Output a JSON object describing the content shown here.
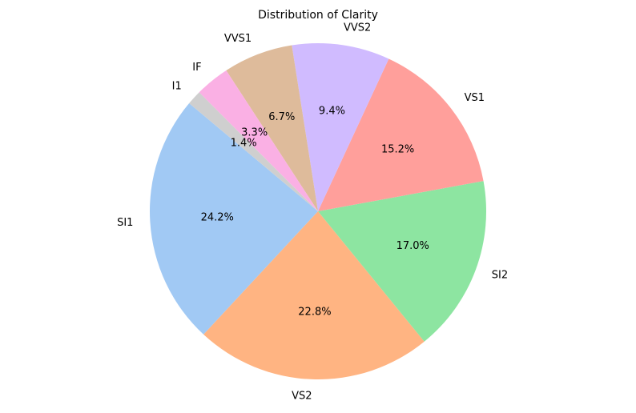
{
  "chart_data": {
    "type": "pie",
    "title": "Distribution of Clarity",
    "start_angle_deg": 140,
    "direction": "counterclockwise",
    "slices": [
      {
        "label": "SI1",
        "percent": 24.2,
        "pct_text": "24.2%",
        "color": "#a1c9f4"
      },
      {
        "label": "VS2",
        "percent": 22.8,
        "pct_text": "22.8%",
        "color": "#ffb482"
      },
      {
        "label": "SI2",
        "percent": 17.0,
        "pct_text": "17.0%",
        "color": "#8de5a1"
      },
      {
        "label": "VS1",
        "percent": 15.2,
        "pct_text": "15.2%",
        "color": "#ff9f9b"
      },
      {
        "label": "VVS2",
        "percent": 9.4,
        "pct_text": "9.4%",
        "color": "#d0bbff"
      },
      {
        "label": "VVS1",
        "percent": 6.7,
        "pct_text": "6.7%",
        "color": "#debb9b"
      },
      {
        "label": "IF",
        "percent": 3.3,
        "pct_text": "3.3%",
        "color": "#fab0e4"
      },
      {
        "label": "I1",
        "percent": 1.4,
        "pct_text": "1.4%",
        "color": "#cfcfcf"
      }
    ]
  }
}
